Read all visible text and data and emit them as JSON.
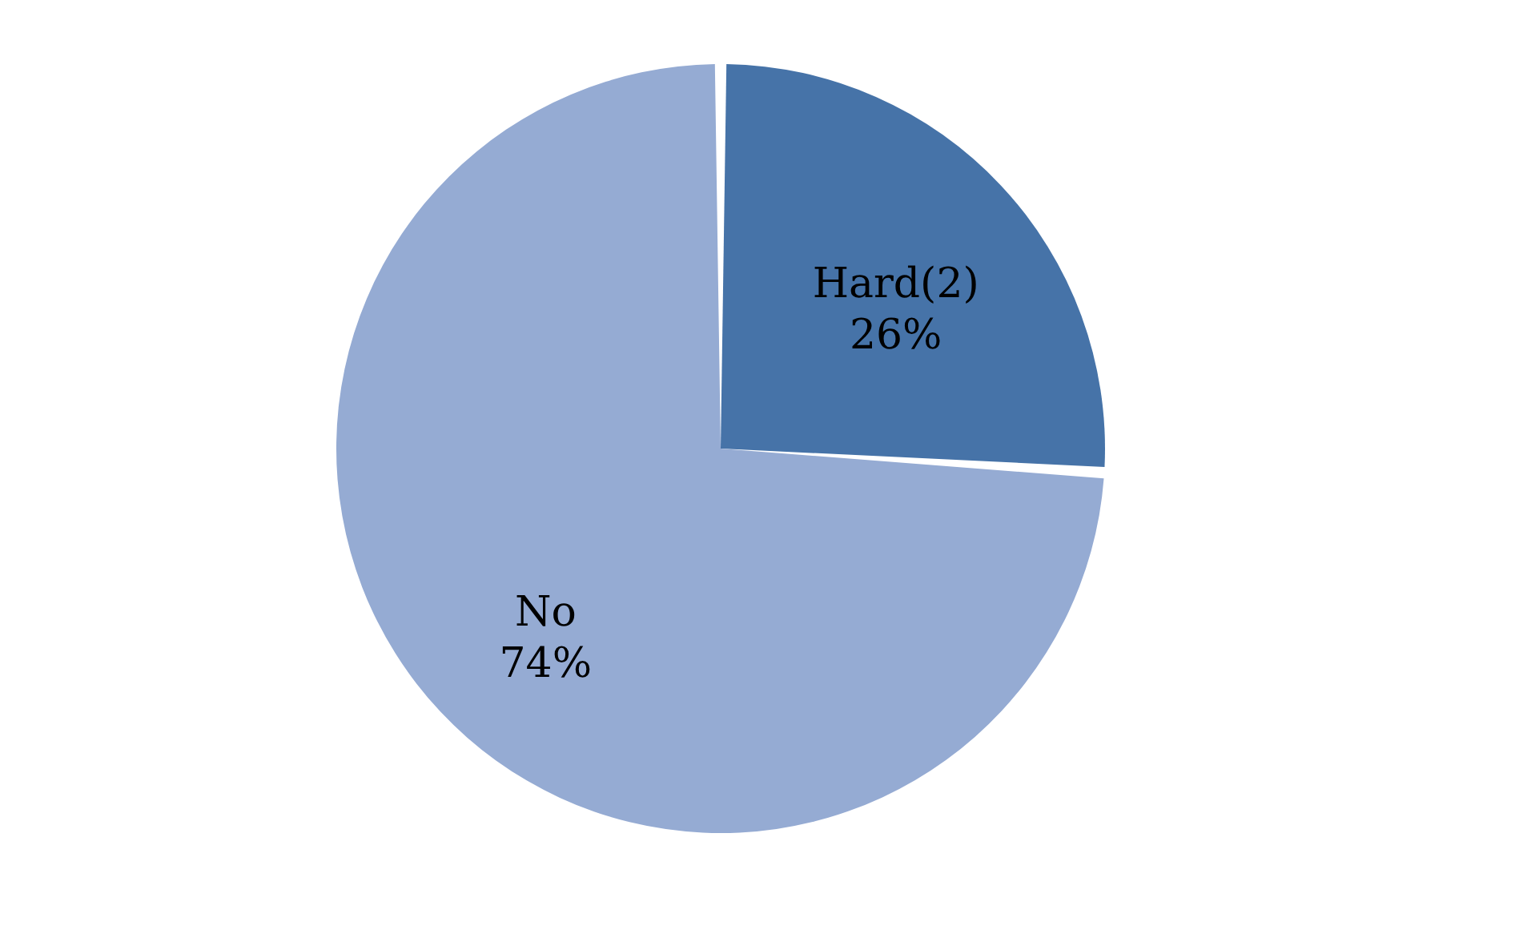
{
  "chart_data": {
    "type": "pie",
    "categories": [
      "Hard(2)",
      "No"
    ],
    "values": [
      26,
      74
    ],
    "colors": [
      "#4673a8",
      "#95abd3"
    ],
    "value_labels": [
      "26%",
      "74%"
    ]
  }
}
